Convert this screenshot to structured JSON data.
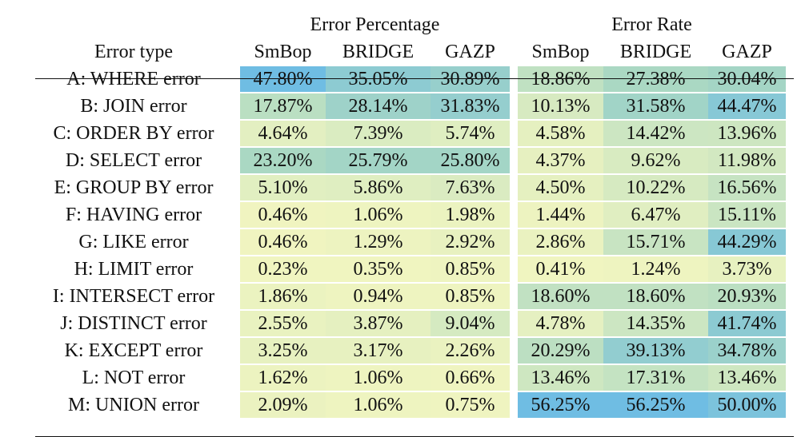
{
  "table": {
    "header_row1": {
      "group1": "Error Percentage",
      "group2": "Error Rate"
    },
    "header_row2": [
      "Error type",
      "SmBop",
      "BRIDGE",
      "GAZP",
      "SmBop",
      "BRIDGE",
      "GAZP"
    ],
    "rows": [
      {
        "label": "A: WHERE error",
        "values": [
          "47.80%",
          "35.05%",
          "30.89%",
          "18.86%",
          "27.38%",
          "30.04%"
        ]
      },
      {
        "label": "B: JOIN error",
        "values": [
          "17.87%",
          "28.14%",
          "31.83%",
          "10.13%",
          "31.58%",
          "44.47%"
        ]
      },
      {
        "label": "C: ORDER BY error",
        "values": [
          "4.64%",
          "7.39%",
          "5.74%",
          "4.58%",
          "14.42%",
          "13.96%"
        ]
      },
      {
        "label": "D: SELECT error",
        "values": [
          "23.20%",
          "25.79%",
          "25.80%",
          "4.37%",
          "9.62%",
          "11.98%"
        ]
      },
      {
        "label": "E: GROUP BY error",
        "values": [
          "5.10%",
          "5.86%",
          "7.63%",
          "4.50%",
          "10.22%",
          "16.56%"
        ]
      },
      {
        "label": "F: HAVING error",
        "values": [
          "0.46%",
          "1.06%",
          "1.98%",
          "1.44%",
          "6.47%",
          "15.11%"
        ]
      },
      {
        "label": "G: LIKE error",
        "values": [
          "0.46%",
          "1.29%",
          "2.92%",
          "2.86%",
          "15.71%",
          "44.29%"
        ]
      },
      {
        "label": "H: LIMIT error",
        "values": [
          "0.23%",
          "0.35%",
          "0.85%",
          "0.41%",
          "1.24%",
          "3.73%"
        ]
      },
      {
        "label": "I: INTERSECT error",
        "values": [
          "1.86%",
          "0.94%",
          "0.85%",
          "18.60%",
          "18.60%",
          "20.93%"
        ]
      },
      {
        "label": "J: DISTINCT error",
        "values": [
          "2.55%",
          "3.87%",
          "9.04%",
          "4.78%",
          "14.35%",
          "41.74%"
        ]
      },
      {
        "label": "K: EXCEPT error",
        "values": [
          "3.25%",
          "3.17%",
          "2.26%",
          "20.29%",
          "39.13%",
          "34.78%"
        ]
      },
      {
        "label": "L: NOT error",
        "values": [
          "1.62%",
          "1.06%",
          "0.66%",
          "13.46%",
          "17.31%",
          "13.46%"
        ]
      },
      {
        "label": "M: UNION error",
        "values": [
          "2.09%",
          "1.06%",
          "0.75%",
          "56.25%",
          "56.25%",
          "50.00%"
        ]
      }
    ],
    "heatmap_colors": {
      "low": "#f1f5c0",
      "mid": "#a8d7c3",
      "high": "#6fbde3"
    }
  }
}
